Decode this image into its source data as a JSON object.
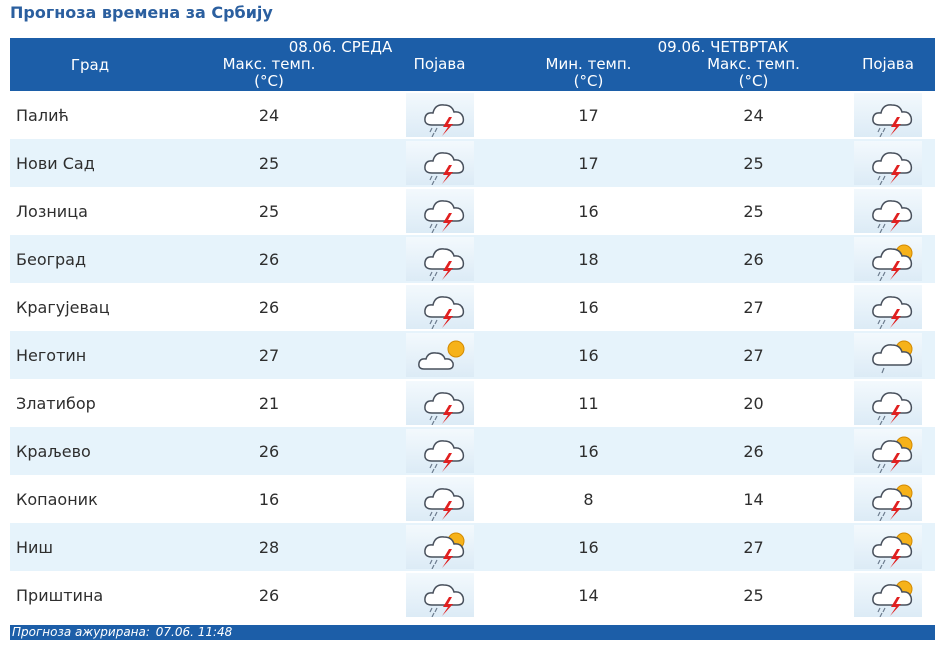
{
  "page_title": "Прогноза времена за Србију",
  "header": {
    "city": "Град",
    "day1": {
      "date": "08.06. СРЕДА",
      "max_label": "Макс. темп.",
      "unit": "(°C)",
      "phenomenon": "Појава"
    },
    "day2": {
      "date": "09.06. ЧЕТВРТАК",
      "min_label": "Мин. темп.",
      "max_label": "Макс. темп.",
      "unit": "(°C)",
      "phenomenon": "Појава"
    }
  },
  "rows": [
    {
      "city": "Палић",
      "d1_max": "24",
      "d1_icon": "thunderstorm-icon",
      "d2_min": "17",
      "d2_max": "24",
      "d2_icon": "thunderstorm-icon"
    },
    {
      "city": "Нови Сад",
      "d1_max": "25",
      "d1_icon": "thunderstorm-icon",
      "d2_min": "17",
      "d2_max": "25",
      "d2_icon": "thunderstorm-icon"
    },
    {
      "city": "Лозница",
      "d1_max": "25",
      "d1_icon": "thunderstorm-icon",
      "d2_min": "16",
      "d2_max": "25",
      "d2_icon": "thunderstorm-icon"
    },
    {
      "city": "Београд",
      "d1_max": "26",
      "d1_icon": "thunderstorm-icon",
      "d2_min": "18",
      "d2_max": "26",
      "d2_icon": "sun-thunderstorm-icon"
    },
    {
      "city": "Крагујевац",
      "d1_max": "26",
      "d1_icon": "thunderstorm-icon",
      "d2_min": "16",
      "d2_max": "27",
      "d2_icon": "thunderstorm-icon"
    },
    {
      "city": "Неготин",
      "d1_max": "27",
      "d1_icon": "partly-cloudy-icon",
      "d2_min": "16",
      "d2_max": "27",
      "d2_icon": "sun-shower-icon"
    },
    {
      "city": "Златибор",
      "d1_max": "21",
      "d1_icon": "thunderstorm-icon",
      "d2_min": "11",
      "d2_max": "20",
      "d2_icon": "thunderstorm-icon"
    },
    {
      "city": "Краљево",
      "d1_max": "26",
      "d1_icon": "thunderstorm-icon",
      "d2_min": "16",
      "d2_max": "26",
      "d2_icon": "sun-thunderstorm-icon"
    },
    {
      "city": "Копаоник",
      "d1_max": "16",
      "d1_icon": "thunderstorm-icon",
      "d2_min": "8",
      "d2_max": "14",
      "d2_icon": "sun-thunderstorm-icon"
    },
    {
      "city": "Ниш",
      "d1_max": "28",
      "d1_icon": "sun-thunderstorm-icon",
      "d2_min": "16",
      "d2_max": "27",
      "d2_icon": "sun-thunderstorm-icon"
    },
    {
      "city": "Приштина",
      "d1_max": "26",
      "d1_icon": "thunderstorm-icon",
      "d2_min": "14",
      "d2_max": "25",
      "d2_icon": "sun-thunderstorm-icon"
    }
  ],
  "footer": {
    "label": "Прогноза ажурирана:",
    "timestamp": "07.06. 11:48"
  },
  "colors": {
    "header_bg": "#1c5ea8",
    "title": "#2b5f9f",
    "row_alt": "#e6f3fb"
  }
}
